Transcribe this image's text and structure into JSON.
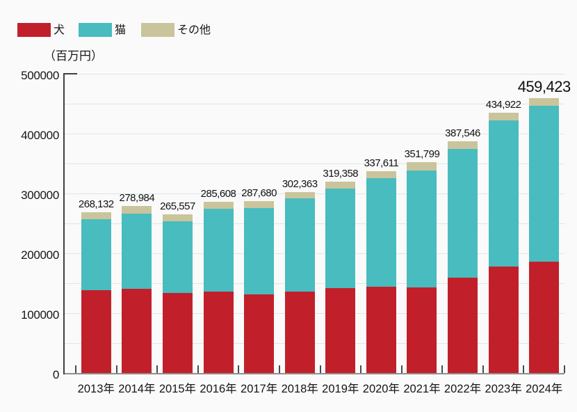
{
  "unit_label": "（百万円）",
  "legend": {
    "items": [
      {
        "label": "犬",
        "color": "#c1202a"
      },
      {
        "label": "猫",
        "color": "#48bcbe"
      },
      {
        "label": "その他",
        "color": "#cac49c"
      }
    ]
  },
  "chart_data": {
    "type": "bar",
    "stacked": true,
    "unit": "百万円",
    "categories": [
      "2013年",
      "2014年",
      "2015年",
      "2016年",
      "2017年",
      "2018年",
      "2019年",
      "2020年",
      "2021年",
      "2022年",
      "2023年",
      "2024年"
    ],
    "series": [
      {
        "name": "犬",
        "color": "#c1202a",
        "values": [
          138500,
          140200,
          133500,
          136600,
          131500,
          136600,
          141300,
          144400,
          143200,
          158900,
          177600,
          185800
        ]
      },
      {
        "name": "猫",
        "color": "#48bcbe",
        "values": [
          117932,
          125884,
          120357,
          137308,
          144480,
          154863,
          166358,
          181511,
          195699,
          215746,
          244822,
          261123
        ]
      },
      {
        "name": "その他",
        "color": "#cac49c",
        "values": [
          11700,
          12900,
          11700,
          11700,
          11700,
          10900,
          11700,
          11700,
          12900,
          12900,
          12500,
          12500
        ]
      }
    ],
    "totals": [
      268132,
      278984,
      265557,
      285608,
      287680,
      302363,
      319358,
      337611,
      351799,
      387546,
      434922,
      459423
    ],
    "total_labels": [
      "268,132",
      "278,984",
      "265,557",
      "285,608",
      "287,680",
      "302,363",
      "319,358",
      "337,611",
      "351,799",
      "387,546",
      "434,922",
      "459,423"
    ],
    "ylim": [
      0,
      500000
    ],
    "y_tick_labels": [
      "0",
      "100000",
      "200000",
      "300000",
      "400000",
      "500000"
    ],
    "gridline_step": 50000,
    "grid": true,
    "legend_position": "top-left",
    "colors": {
      "gridline": "#dbe7e8",
      "axis": "#3f3f3f",
      "axis_bottom": "#8f8f8f",
      "text": "#161616"
    }
  }
}
